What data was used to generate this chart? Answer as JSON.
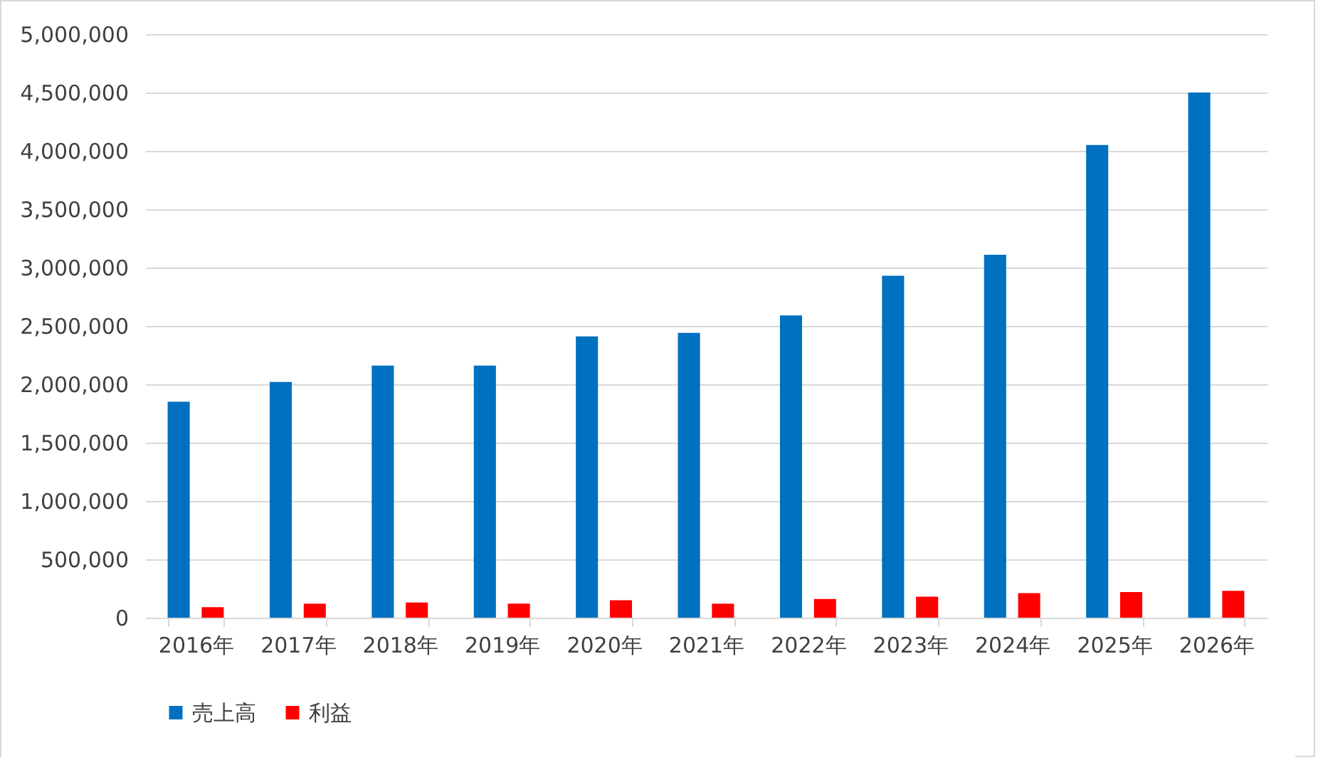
{
  "chart_data": {
    "type": "bar",
    "categories": [
      "2016年",
      "2017年",
      "2018年",
      "2019年",
      "2020年",
      "2021年",
      "2022年",
      "2023年",
      "2024年",
      "2025年",
      "2026年"
    ],
    "series": [
      {
        "name": "売上高",
        "color": "#0070c0",
        "values": [
          1850000,
          2020000,
          2160000,
          2160000,
          2410000,
          2440000,
          2590000,
          2930000,
          3110000,
          4050000,
          4500000
        ]
      },
      {
        "name": "利益",
        "color": "#ff0000",
        "values": [
          90000,
          120000,
          130000,
          120000,
          150000,
          120000,
          160000,
          180000,
          210000,
          220000,
          230000
        ]
      }
    ],
    "ylim": [
      0,
      5000000
    ],
    "yticks": [
      0,
      {
        "value": 500000,
        "label": "500,000"
      },
      {
        "value": 1000000,
        "label": "1,000,000"
      },
      {
        "value": 1500000,
        "label": "1,500,000"
      },
      {
        "value": 2000000,
        "label": "2,000,000"
      },
      {
        "value": 2500000,
        "label": "2,500,000"
      },
      {
        "value": 3000000,
        "label": "3,000,000"
      },
      {
        "value": 3500000,
        "label": "3,500,000"
      },
      {
        "value": 4000000,
        "label": "4,000,000"
      },
      {
        "value": 4500000,
        "label": "4,500,000"
      },
      {
        "value": 5000000,
        "label": "5,000,000"
      }
    ],
    "grid": "y",
    "legend": "bottom"
  }
}
